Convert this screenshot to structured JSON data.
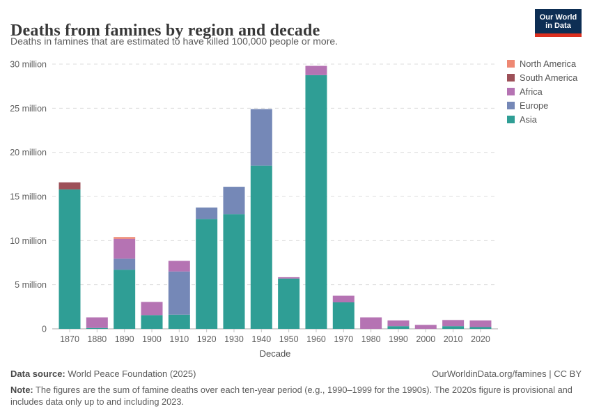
{
  "header": {
    "title": "Deaths from famines by region and decade",
    "subtitle": "Deaths in famines that are estimated to have killed 100,000 people or more.",
    "logo_line1": "Our World",
    "logo_line2": "in Data"
  },
  "chart_data": {
    "type": "bar",
    "stacked": true,
    "title": "Deaths from famines by region and decade",
    "xlabel": "Decade",
    "ylabel": "",
    "unit": "deaths (millions)",
    "ylim_millions": [
      0,
      30
    ],
    "ytick_interval_millions": 5,
    "ytick_labels": [
      "0",
      "5 million",
      "10 million",
      "15 million",
      "20 million",
      "25 million",
      "30 million"
    ],
    "grid": "dashed horizontal",
    "legend_position": "right",
    "legend_order_top_to_bottom": [
      "North America",
      "South America",
      "Africa",
      "Europe",
      "Asia"
    ],
    "categories": [
      "1870",
      "1880",
      "1890",
      "1900",
      "1910",
      "1920",
      "1930",
      "1940",
      "1950",
      "1960",
      "1970",
      "1980",
      "1990",
      "2000",
      "2010",
      "2020"
    ],
    "series": [
      {
        "name": "Asia",
        "color": "#2f9e95",
        "values_millions": [
          15.8,
          0.1,
          6.7,
          1.55,
          1.6,
          12.45,
          13.0,
          18.5,
          5.7,
          28.75,
          3.0,
          0,
          0.3,
          0,
          0.3,
          0.2
        ]
      },
      {
        "name": "Europe",
        "color": "#7588b7",
        "values_millions": [
          0,
          0,
          1.25,
          0,
          4.9,
          1.3,
          3.1,
          6.4,
          0,
          0,
          0,
          0,
          0,
          0,
          0,
          0
        ]
      },
      {
        "name": "Africa",
        "color": "#b573b3",
        "values_millions": [
          0,
          1.2,
          2.25,
          1.5,
          1.2,
          0,
          0,
          0,
          0.15,
          1.05,
          0.75,
          1.3,
          0.65,
          0.45,
          0.7,
          0.75
        ]
      },
      {
        "name": "South America",
        "color": "#9d5058",
        "values_millions": [
          0.8,
          0,
          0,
          0,
          0,
          0,
          0,
          0,
          0,
          0,
          0,
          0,
          0,
          0,
          0,
          0
        ]
      },
      {
        "name": "North America",
        "color": "#ee8873",
        "values_millions": [
          0,
          0,
          0.2,
          0,
          0,
          0,
          0,
          0,
          0,
          0,
          0,
          0,
          0,
          0,
          0,
          0
        ]
      }
    ]
  },
  "footer": {
    "data_source_label": "Data source:",
    "data_source_value": " World Peace Foundation (2025)",
    "citation": "OurWorldinData.org/famines | CC BY",
    "note_label": "Note:",
    "note_text": " The figures are the sum of famine deaths over each ten-year period (e.g., 1990–1999 for the 1990s). The 2020s figure is provisional and includes data only up to and including 2023."
  }
}
